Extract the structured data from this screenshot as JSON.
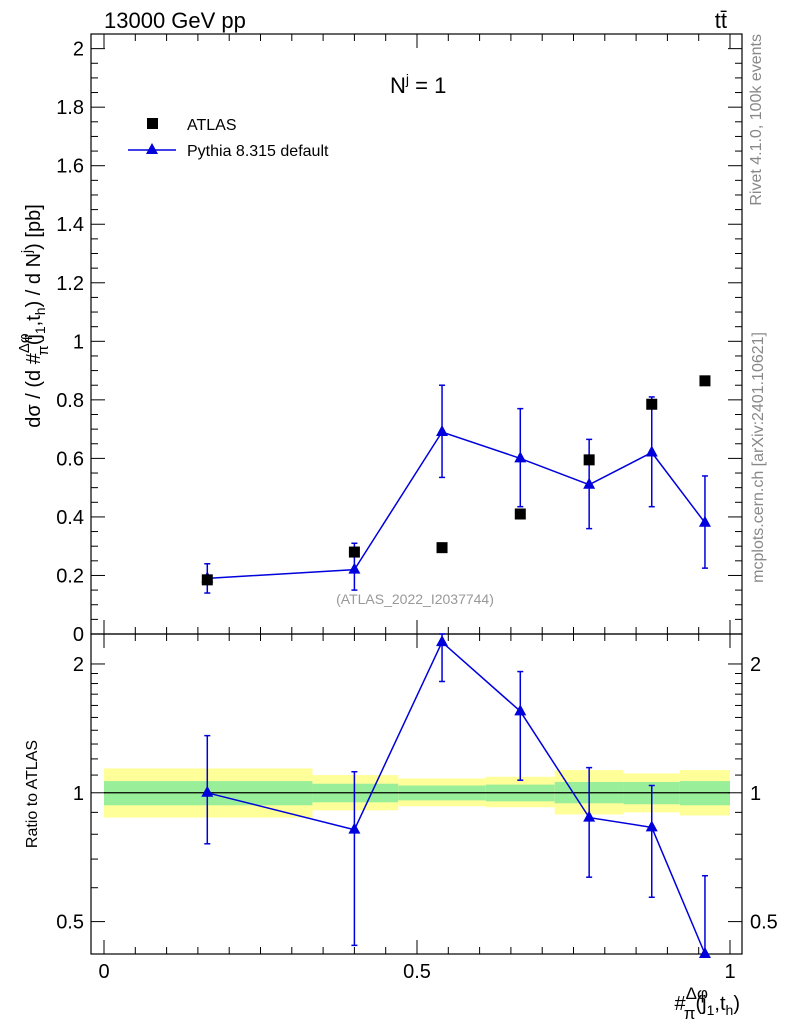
{
  "header": {
    "left": "13000 GeV pp",
    "right": "tt̄"
  },
  "side_labels": {
    "rivet": "Rivet 4.1.0,  100k events",
    "mcplots": "mcplots.cern.ch [arXiv:2401.10621]"
  },
  "chart_data": [
    {
      "type": "scatter",
      "panel": "main",
      "title": "N^j = 1",
      "title_main": "N",
      "title_sup": "j",
      "title_rest": " = 1",
      "ylabel": "dσ / (d #Δφ/π(j1,th) / d N^j) [pb]",
      "ylabel_parts": {
        "pre": "dσ / (d #",
        "frac_num": "Δφ",
        "frac_den": "π",
        "arg_open": "(j",
        "sub1": "1",
        "arg_mid": ",t",
        "sub2": "h",
        "arg_close": ") / d N",
        "sup": "j",
        "post": ") [pb]"
      },
      "xlim": [
        0,
        1
      ],
      "ylim": [
        0,
        2.05
      ],
      "y_ticks": [
        0,
        0.2,
        0.4,
        0.6,
        0.8,
        1,
        1.2,
        1.4,
        1.6,
        1.8,
        2
      ],
      "y_tick_labels": [
        "0",
        "0.2",
        "0.4",
        "0.6",
        "0.8",
        "1",
        "1.2",
        "1.4",
        "1.6",
        "1.8",
        "2"
      ],
      "watermark": "(ATLAS_2022_I2037744)",
      "legend_position": "top-left",
      "series": [
        {
          "name": "ATLAS",
          "style": "black-squares",
          "color": "#000000",
          "x": [
            0.165,
            0.4,
            0.54,
            0.665,
            0.775,
            0.875,
            0.96
          ],
          "y": [
            0.185,
            0.28,
            0.295,
            0.41,
            0.595,
            0.785,
            0.865
          ]
        },
        {
          "name": "Pythia 8.315 default",
          "style": "blue-triangles-line",
          "color": "#0000dd",
          "x": [
            0.165,
            0.4,
            0.54,
            0.665,
            0.775,
            0.875,
            0.96
          ],
          "y": [
            0.19,
            0.22,
            0.69,
            0.6,
            0.51,
            0.62,
            0.38
          ],
          "err_low": [
            0.05,
            0.07,
            0.155,
            0.165,
            0.15,
            0.185,
            0.155
          ],
          "err_high": [
            0.05,
            0.09,
            0.16,
            0.17,
            0.155,
            0.19,
            0.16
          ]
        }
      ]
    },
    {
      "type": "line",
      "panel": "ratio",
      "ylabel": "Ratio to ATLAS",
      "xlabel": "#Δφ/π(j1,th)",
      "xlabel_parts": {
        "pre": "#",
        "frac_num": "Δφ",
        "frac_den": "π",
        "arg_open": "(j",
        "sub1": "1",
        "arg_mid": ",t",
        "sub2": "h",
        "arg_close": ")"
      },
      "xlim": [
        0,
        1
      ],
      "ylim": [
        0.42,
        2.35
      ],
      "y_scale": "log",
      "y_ticks": [
        0.5,
        1,
        2
      ],
      "y_tick_labels": [
        "0.5",
        "1",
        "2"
      ],
      "x_ticks": [
        0,
        0.5,
        1
      ],
      "x_tick_labels": [
        "0",
        "0.5",
        "1"
      ],
      "bands": [
        {
          "x0": 0.0,
          "x1": 0.333,
          "green_lo": 0.935,
          "green_hi": 1.065,
          "yellow_lo": 0.875,
          "yellow_hi": 1.14
        },
        {
          "x0": 0.333,
          "x1": 0.47,
          "green_lo": 0.95,
          "green_hi": 1.05,
          "yellow_lo": 0.91,
          "yellow_hi": 1.1
        },
        {
          "x0": 0.47,
          "x1": 0.61,
          "green_lo": 0.96,
          "green_hi": 1.04,
          "yellow_lo": 0.93,
          "yellow_hi": 1.08
        },
        {
          "x0": 0.61,
          "x1": 0.72,
          "green_lo": 0.955,
          "green_hi": 1.045,
          "yellow_lo": 0.925,
          "yellow_hi": 1.09
        },
        {
          "x0": 0.72,
          "x1": 0.83,
          "green_lo": 0.945,
          "green_hi": 1.06,
          "yellow_lo": 0.89,
          "yellow_hi": 1.13
        },
        {
          "x0": 0.83,
          "x1": 0.92,
          "green_lo": 0.94,
          "green_hi": 1.06,
          "yellow_lo": 0.9,
          "yellow_hi": 1.11
        },
        {
          "x0": 0.92,
          "x1": 1.0,
          "green_lo": 0.935,
          "green_hi": 1.065,
          "yellow_lo": 0.885,
          "yellow_hi": 1.13
        }
      ],
      "series": [
        {
          "name": "Pythia 8.315 default",
          "color": "#0000dd",
          "x": [
            0.165,
            0.4,
            0.54,
            0.665,
            0.775,
            0.875,
            0.96
          ],
          "y": [
            1.0,
            0.82,
            2.25,
            1.55,
            0.875,
            0.83,
            0.42
          ],
          "err_low": [
            0.24,
            0.38,
            0.43,
            0.48,
            0.24,
            0.26,
            0.1
          ],
          "err_high": [
            0.36,
            0.3,
            0.1,
            0.37,
            0.27,
            0.21,
            0.22
          ]
        }
      ]
    }
  ]
}
